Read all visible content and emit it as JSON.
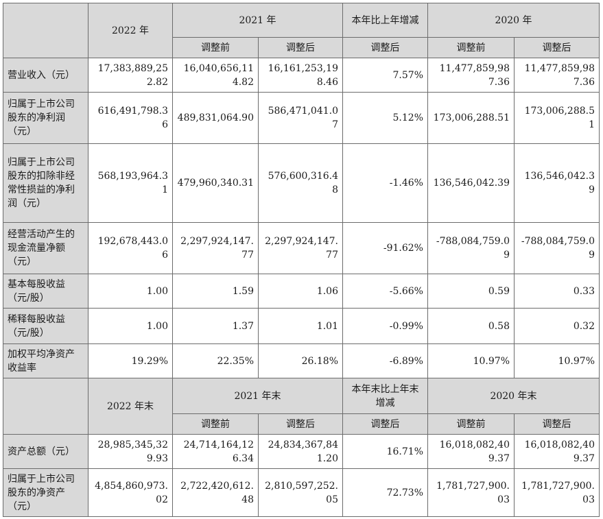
{
  "header1": {
    "year_2022": "2022 年",
    "year_2021": "2021 年",
    "change": "本年比上年增减",
    "year_2020": "2020 年",
    "before_adj": "调整前",
    "after_adj": "调整后"
  },
  "rows1": [
    {
      "label": "营业收入（元）",
      "v2022": "17,383,889,252.82",
      "v2021b": "16,040,656,114.82",
      "v2021a": "16,161,253,198.46",
      "chg": "7.57%",
      "v2020b": "11,477,859,987.36",
      "v2020a": "11,477,859,987.36"
    },
    {
      "label": "归属于上市公司股东的净利润（元）",
      "v2022": "616,491,798.36",
      "v2021b": "489,831,064.90",
      "v2021a": "586,471,041.07",
      "chg": "5.12%",
      "v2020b": "173,006,288.51",
      "v2020a": "173,006,288.51"
    },
    {
      "label": "归属于上市公司股东的扣除非经常性损益的净利润（元）",
      "v2022": "568,193,964.31",
      "v2021b": "479,960,340.31",
      "v2021a": "576,600,316.48",
      "chg": "-1.46%",
      "v2020b": "136,546,042.39",
      "v2020a": "136,546,042.39"
    },
    {
      "label": "经营活动产生的现金流量净额（元）",
      "v2022": "192,678,443.06",
      "v2021b": "2,297,924,147.77",
      "v2021a": "2,297,924,147.77",
      "chg": "-91.62%",
      "v2020b": "-788,084,759.09",
      "v2020a": "-788,084,759.09"
    },
    {
      "label": "基本每股收益（元/股）",
      "v2022": "1.00",
      "v2021b": "1.59",
      "v2021a": "1.06",
      "chg": "-5.66%",
      "v2020b": "0.59",
      "v2020a": "0.33"
    },
    {
      "label": "稀释每股收益（元/股）",
      "v2022": "1.00",
      "v2021b": "1.37",
      "v2021a": "1.01",
      "chg": "-0.99%",
      "v2020b": "0.58",
      "v2020a": "0.32"
    },
    {
      "label": "加权平均净资产收益率",
      "v2022": "19.29%",
      "v2021b": "22.35%",
      "v2021a": "26.18%",
      "chg": "-6.89%",
      "v2020b": "10.97%",
      "v2020a": "10.97%"
    }
  ],
  "header2": {
    "year_2022_end": "2022 年末",
    "year_2021_end": "2021 年末",
    "change_end": "本年末比上年末增减",
    "year_2020_end": "2020 年末",
    "before_adj": "调整前",
    "after_adj": "调整后"
  },
  "rows2": [
    {
      "label": "资产总额（元）",
      "v2022": "28,985,345,329.93",
      "v2021b": "24,714,164,126.34",
      "v2021a": "24,834,367,841.20",
      "chg": "16.71%",
      "v2020b": "16,018,082,409.37",
      "v2020a": "16,018,082,409.37"
    },
    {
      "label": "归属于上市公司股东的净资产（元）",
      "v2022": "4,854,860,973.02",
      "v2021b": "2,722,420,612.48",
      "v2021a": "2,810,597,252.05",
      "chg": "72.73%",
      "v2020b": "1,781,727,900.03",
      "v2020a": "1,781,727,900.03"
    }
  ]
}
